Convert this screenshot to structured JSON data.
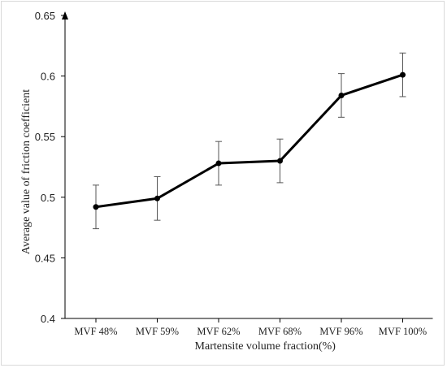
{
  "chart_data": {
    "type": "line",
    "title": "",
    "xlabel": "Martensite volume fraction(%)",
    "ylabel": "Average value of  friction coefficient",
    "categories": [
      "MVF 48%",
      "MVF 59%",
      "MVF 62%",
      "MVF 68%",
      "MVF 96%",
      "MVF 100%"
    ],
    "series": [
      {
        "values": [
          0.492,
          0.499,
          0.528,
          0.53,
          0.584,
          0.601
        ],
        "error": [
          0.018,
          0.018,
          0.018,
          0.018,
          0.018,
          0.018
        ]
      }
    ],
    "ylim": [
      0.4,
      0.65
    ],
    "yticks": [
      "0.4",
      "0.45",
      "0.5",
      "0.55",
      "0.6",
      "0.65"
    ],
    "grid": false,
    "legend": "none",
    "colors": {
      "line": "#000000",
      "error_bar": "#555555",
      "axis": "#000000"
    }
  }
}
